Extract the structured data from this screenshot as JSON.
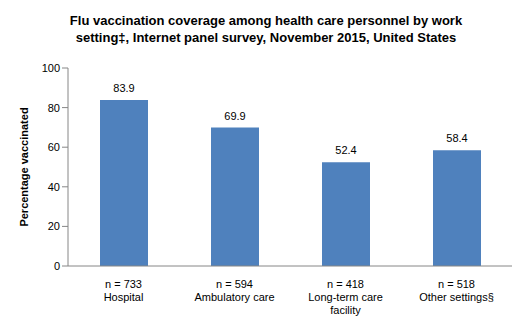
{
  "chart_data": {
    "type": "bar",
    "title": "Flu vaccination coverage among health care personnel by work\nsetting‡, Internet panel survey, November 2015, United States",
    "y_label": "Percentage vaccinated",
    "categories": [
      "n = 733\nHospital",
      "n = 594\nAmbulatory care",
      "n = 418\nLong-term care\nfacility",
      "n = 518\nOther settings§"
    ],
    "values": [
      83.9,
      69.9,
      52.4,
      58.4
    ],
    "color": "#4f81bd",
    "ylim": [
      0,
      100
    ],
    "yticks": [
      0,
      20,
      40,
      60,
      80,
      100
    ],
    "grid": false,
    "data_labels": true
  }
}
